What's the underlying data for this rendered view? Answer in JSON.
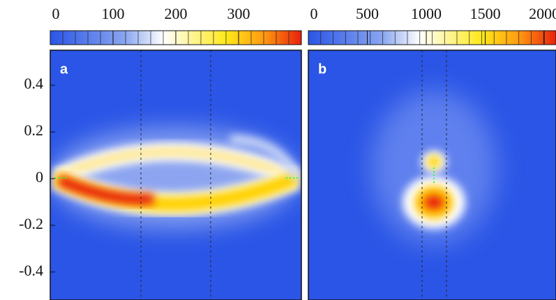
{
  "chart_data": [
    {
      "type": "heatmap",
      "panel_label": "a",
      "colorbar": {
        "lim": [
          0,
          400
        ],
        "ticks": [
          0,
          100,
          200,
          300
        ]
      },
      "ylim": [
        -0.52,
        0.55
      ],
      "yticks": [
        0.4,
        0.2,
        0,
        -0.2,
        -0.4
      ]
    },
    {
      "type": "heatmap",
      "panel_label": "b",
      "colorbar": {
        "lim": [
          0,
          2100
        ],
        "ticks": [
          0,
          500,
          1000,
          1500,
          2000
        ]
      }
    }
  ]
}
